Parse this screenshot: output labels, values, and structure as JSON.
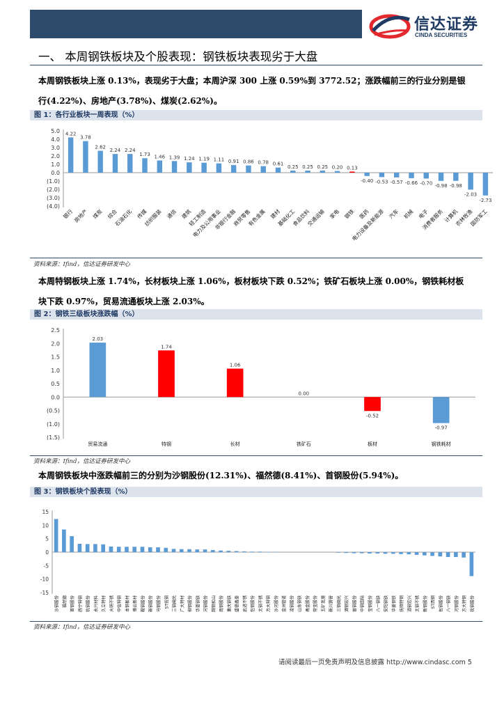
{
  "header": {
    "logo_cn": "信达证券",
    "logo_en": "CINDA SECURITIES"
  },
  "section_title": "一、 本周钢铁板块及个股表现：钢铁板块表现劣于大盘",
  "paragraph1": {
    "line1": "本周钢铁板块上涨 0.13%，表现劣于大盘；本周沪深 300 上涨 0.59%到 3772.52；涨跌幅前三的行业分别是银",
    "line2": "行(4.22%)、房地产(3.78%)、煤炭(2.62%)。"
  },
  "paragraph2": {
    "line1": "本周特钢板块上涨 1.74%，长材板块上涨 1.06%，板材板块下跌 0.52%；铁矿石板块上涨 0.00%，钢铁耗材板",
    "line2": "块下跌 0.97%，贸易流通板块上涨 2.03%。"
  },
  "paragraph3": "本周钢铁板块中涨跌幅前三的分别为沙钢股份(12.31%)、福然德(8.41%)、首钢股份(5.94%)。",
  "figure1_caption": "图 1：各行业板块一周表现（%）",
  "figure2_caption": "图 2：钢铁三级板块涨跌幅（%）",
  "figure3_caption": "图 3：钢铁板块个股表现（%）",
  "source1": "资料来源：Ifind，信达证券研发中心",
  "source2": "资料来源：Ifind，信达证券研发中心",
  "source3": "资料来源：Ifind，信达证券研发中心",
  "footer": "请阅读最后一页免责声明及信息披露 http://www.cindasc.com  5",
  "colors": {
    "blue": "#5b9bd5",
    "red": "#ff0000",
    "brand": "#1f3a63"
  },
  "chart_data": [
    {
      "type": "bar",
      "categories": [
        "银行",
        "房地产",
        "煤炭",
        "综合",
        "石油石化",
        "传媒",
        "纺织服装",
        "通信",
        "建筑",
        "轻工制造",
        "电力及公用事业",
        "非银行金融",
        "商贸零售",
        "有色金属",
        "建材",
        "基础化工",
        "食品饮料",
        "交通运输",
        "家电",
        "钢铁",
        "医药",
        "电力设备及新能源",
        "汽车",
        "机械",
        "电子",
        "消费者服务",
        "计算机",
        "农林牧渔",
        "国防军工"
      ],
      "values": [
        4.22,
        3.78,
        2.62,
        2.24,
        2.24,
        1.73,
        1.46,
        1.39,
        1.24,
        1.19,
        1.11,
        0.91,
        0.86,
        0.78,
        0.61,
        0.25,
        0.25,
        0.25,
        0.2,
        0.13,
        -0.4,
        -0.53,
        -0.57,
        -0.66,
        -0.7,
        -0.98,
        -0.98,
        -2.03,
        -2.73
      ],
      "value_labels": [
        "4.22",
        "3.78",
        "2.62",
        "2.24",
        "2.24",
        "1.73",
        "1.46",
        "1.39",
        "1.24",
        "1.19",
        "1.11",
        "0.91",
        "0.86",
        "0.78",
        "0.61",
        "0.25",
        "0.25",
        "0.25",
        "0.20",
        "0.13",
        "-0.40",
        "-0.53",
        "-0.57",
        "-0.66",
        "-0.70",
        "-0.98",
        "-0.98",
        "-2.03",
        "-2.73"
      ],
      "highlight": [
        "钢铁"
      ],
      "yticks": [
        "5.0",
        "4.0",
        "3.0",
        "2.0",
        "1.0",
        "0.0",
        "(1.0)",
        "(2.0)",
        "(3.0)",
        "(4.0)"
      ],
      "ylim": [
        -4,
        5
      ]
    },
    {
      "type": "bar",
      "categories": [
        "贸易流通",
        "特钢",
        "长材",
        "铁矿石",
        "板材",
        "钢铁耗材"
      ],
      "values": [
        2.03,
        1.74,
        1.06,
        0.0,
        -0.52,
        -0.97
      ],
      "value_labels": [
        "2.03",
        "1.74",
        "1.06",
        "0.00",
        "-0.52",
        "-0.97"
      ],
      "bar_colors": [
        "blue",
        "red",
        "red",
        "blue",
        "red",
        "blue"
      ],
      "yticks": [
        "2.5",
        "2.0",
        "1.5",
        "1.0",
        "0.5",
        "0.0",
        "(0.5)",
        "(1.0)",
        "(1.5)"
      ],
      "ylim": [
        -1.5,
        2.5
      ]
    },
    {
      "type": "bar",
      "categories": [
        "沙钢股份",
        "福然德",
        "首钢股份",
        "西宁特钢",
        "杭钢股份",
        "永兴材料",
        "久立特材",
        "大明不锈",
        "中信特钢",
        "本钢板材",
        "博云新材",
        "鞍钢股份",
        "新钢股份",
        "马钢股份",
        "ST抚钢",
        "三钢闽光",
        "广大特材",
        "柳钢股份",
        "华菱钢铁",
        "河钢股份",
        "韶钢松山",
        "南钢股份",
        "重庆钢铁",
        "盛德鑫泰",
        "武进不锈",
        "包钢股份",
        "太钢不锈",
        "方大特钢",
        "沙河股份",
        "金洲管道",
        "凌钢股份",
        "山东钢铁",
        "甬金股份",
        "常宝股份",
        "五矿发展",
        "新兴铸管",
        "三钢闽光",
        "酒钢宏兴",
        "首钢股份",
        "中钢国际",
        "宝钢股份",
        "八一钢铁",
        "安阳钢铁",
        "华菱钢铁",
        "抚顺特钢",
        "酒钢宏兴",
        "太钢不锈",
        "新钢股份",
        "ST西钢",
        "包钢股份",
        "八一钢铁",
        "河钢股份",
        "方大特钢",
        "抚钢股份"
      ],
      "values": [
        12.31,
        8.41,
        5.94,
        3.1,
        3.0,
        3.0,
        2.9,
        2.1,
        2.0,
        2.0,
        2.0,
        2.0,
        1.8,
        1.8,
        1.6,
        1.2,
        1.1,
        1.1,
        1.0,
        1.0,
        0.8,
        0.6,
        0.5,
        0.4,
        0.3,
        0.2,
        0.2,
        0.1,
        0.1,
        0.0,
        0.0,
        0.0,
        0.0,
        0.0,
        0.0,
        0.0,
        -0.2,
        -0.3,
        -0.4,
        -0.4,
        -0.5,
        -0.5,
        -0.6,
        -0.6,
        -0.7,
        -0.8,
        -1.0,
        -1.2,
        -1.4,
        -1.6,
        -1.8,
        -1.8,
        -2.0,
        -8.9
      ],
      "yticks": [
        "15",
        "10",
        "5",
        "0",
        "-5",
        "-10",
        "-15"
      ],
      "ylim": [
        -15,
        15
      ]
    }
  ]
}
